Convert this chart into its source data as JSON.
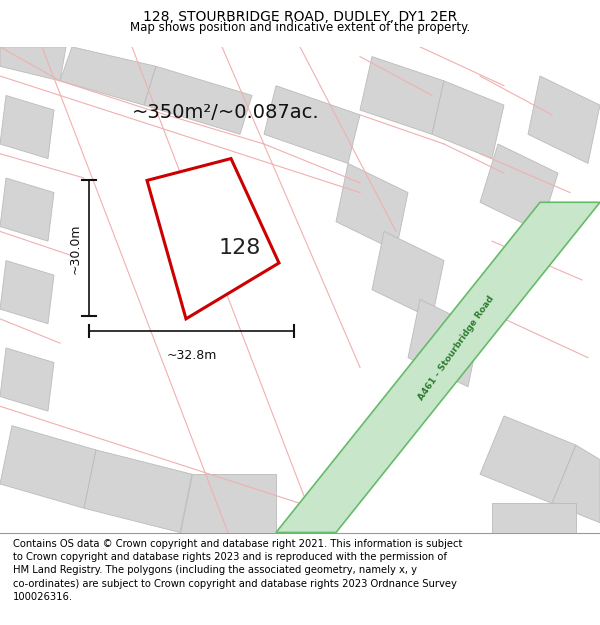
{
  "title": "128, STOURBRIDGE ROAD, DUDLEY, DY1 2ER",
  "subtitle": "Map shows position and indicative extent of the property.",
  "footer": "Contains OS data © Crown copyright and database right 2021. This information is subject\nto Crown copyright and database rights 2023 and is reproduced with the permission of\nHM Land Registry. The polygons (including the associated geometry, namely x, y\nco-ordinates) are subject to Crown copyright and database rights 2023 Ordnance Survey\n100026316.",
  "area_label": "~350m²/~0.087ac.",
  "width_label": "~32.8m",
  "height_label": "~30.0m",
  "property_number": "128",
  "background_color": "#ffffff",
  "road_color": "#c8e6c9",
  "road_border_color": "#66bb6a",
  "road_text_color": "#2e7d32",
  "parcel_line_color": "#f0b0b0",
  "block_color": "#d4d4d4",
  "block_edge_color": "#bbbbbb",
  "red_color": "#cc0000",
  "dim_color": "#111111",
  "title_fontsize": 10,
  "subtitle_fontsize": 8.5,
  "footer_fontsize": 7.2,
  "area_fontsize": 14,
  "number_fontsize": 16,
  "dim_fontsize": 9
}
